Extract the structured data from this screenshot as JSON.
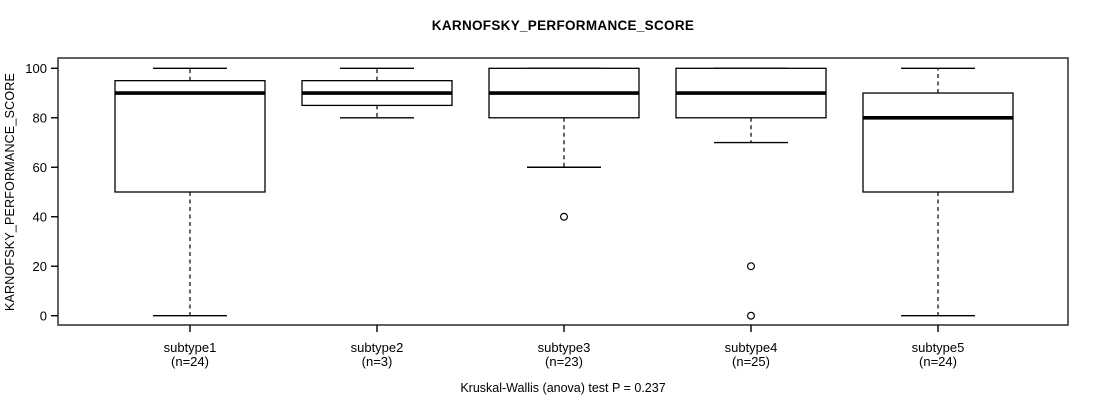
{
  "chart_data": {
    "type": "boxplot",
    "title": "KARNOFSKY_PERFORMANCE_SCORE",
    "ylabel": "KARNOFSKY_PERFORMANCE_SCORE",
    "footer": "Kruskal-Wallis (anova) test P = 0.237",
    "ylim": [
      0,
      100
    ],
    "yticks": [
      0,
      20,
      40,
      60,
      80,
      100
    ],
    "grid": false,
    "legend": "none",
    "groups": [
      {
        "label": "subtype1",
        "n_label": "(n=24)",
        "whisker_low": 0,
        "q1": 50,
        "median": 90,
        "q3": 95,
        "whisker_high": 100,
        "outliers": []
      },
      {
        "label": "subtype2",
        "n_label": "(n=3)",
        "whisker_low": 80,
        "q1": 85,
        "median": 90,
        "q3": 95,
        "whisker_high": 100,
        "outliers": []
      },
      {
        "label": "subtype3",
        "n_label": "(n=23)",
        "whisker_low": 60,
        "q1": 80,
        "median": 90,
        "q3": 100,
        "whisker_high": 100,
        "outliers": [
          40
        ]
      },
      {
        "label": "subtype4",
        "n_label": "(n=25)",
        "whisker_low": 70,
        "q1": 80,
        "median": 90,
        "q3": 100,
        "whisker_high": 100,
        "outliers": [
          20,
          0
        ]
      },
      {
        "label": "subtype5",
        "n_label": "(n=24)",
        "whisker_low": 0,
        "q1": 50,
        "median": 80,
        "q3": 90,
        "whisker_high": 100,
        "outliers": []
      }
    ],
    "colors": {
      "line": "#000000",
      "frame": "#3a3a3a",
      "box_fill": "#ffffff",
      "background": "#ffffff"
    }
  }
}
